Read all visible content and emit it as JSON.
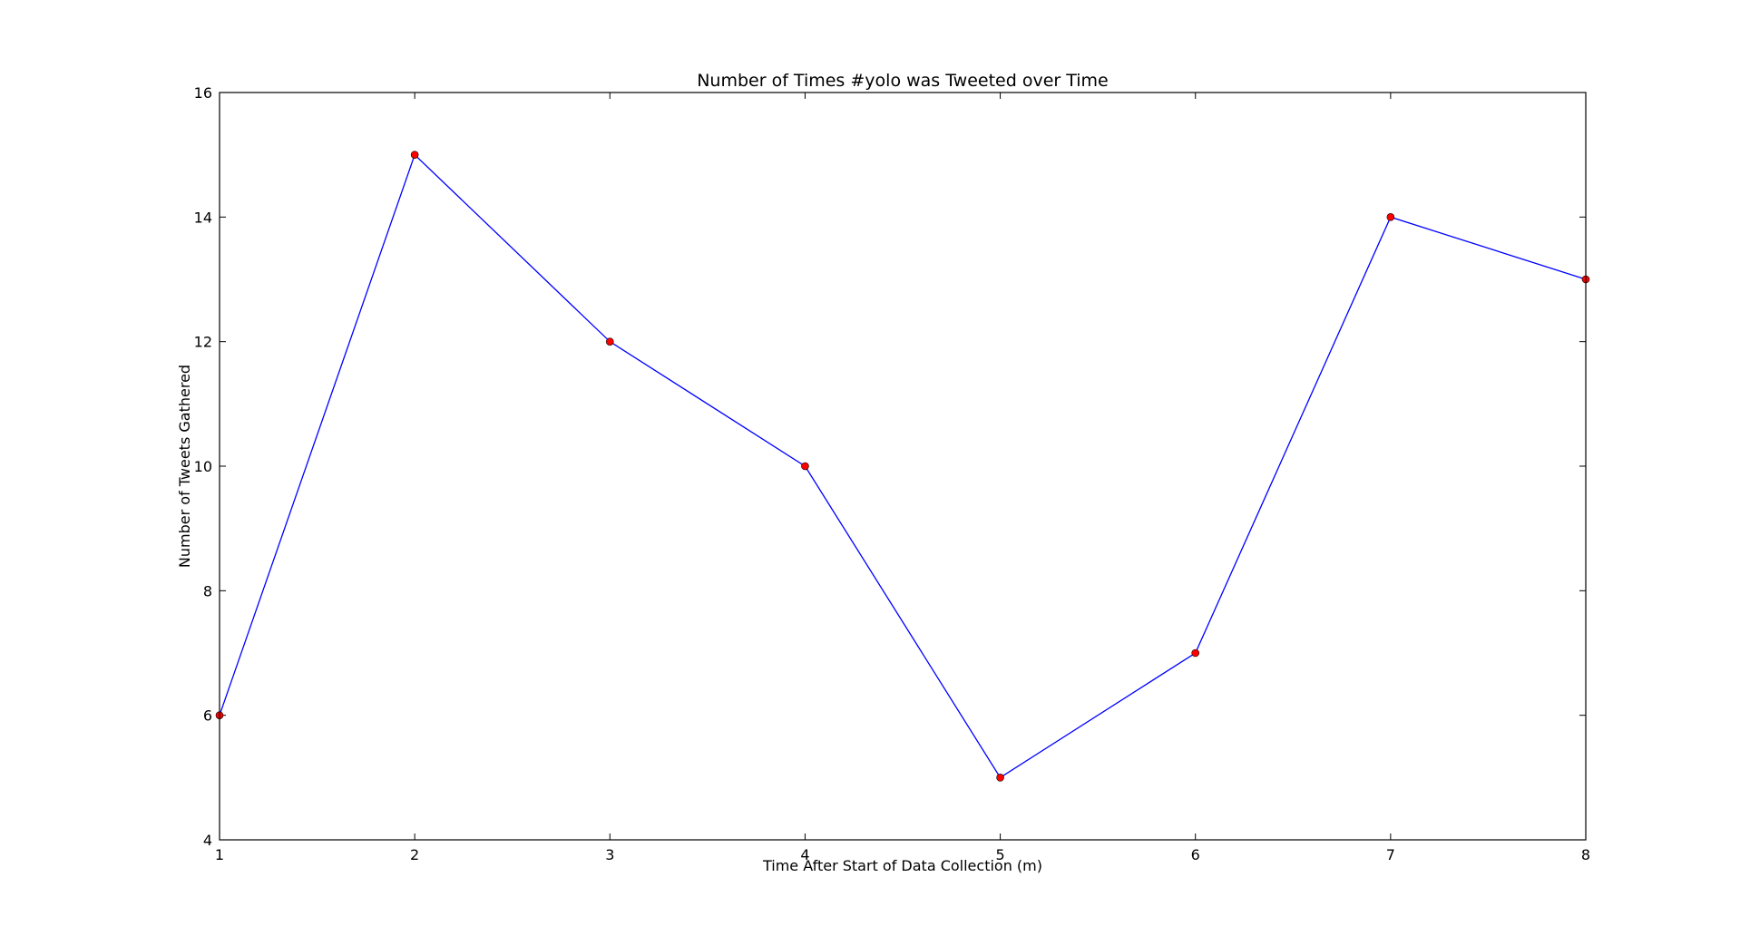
{
  "chart_data": {
    "type": "line",
    "title": "Number of Times #yolo was Tweeted over Time",
    "xlabel": "Time After Start of Data Collection (m)",
    "ylabel": "Number of Tweets Gathered",
    "x": [
      1,
      2,
      3,
      4,
      5,
      6,
      7,
      8
    ],
    "series": [
      {
        "values": [
          6,
          15,
          12,
          10,
          5,
          7,
          14,
          13
        ],
        "line_color": "#0000ff",
        "marker_color": "#ff0000",
        "marker": "circle"
      }
    ],
    "xlim": [
      1,
      8
    ],
    "ylim": [
      4,
      16
    ],
    "xticks": [
      1,
      2,
      3,
      4,
      5,
      6,
      7,
      8
    ],
    "yticks": [
      4,
      6,
      8,
      10,
      12,
      14,
      16
    ],
    "grid": false,
    "legend": "none"
  }
}
